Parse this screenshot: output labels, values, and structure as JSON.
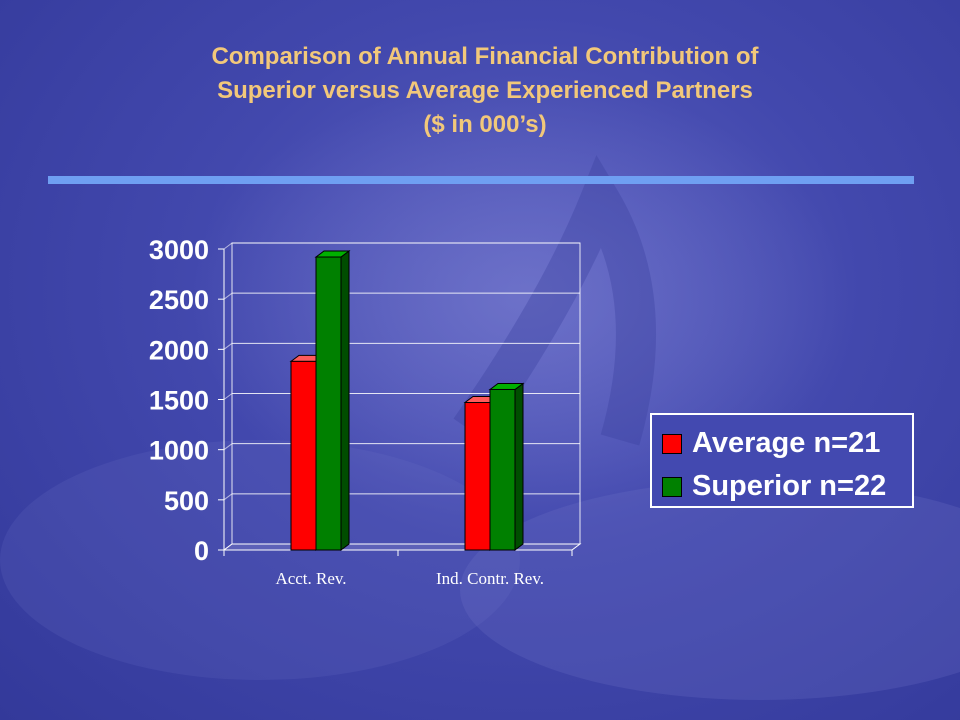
{
  "title_lines": [
    "Comparison of Annual Financial Contribution of",
    "Superior versus Average Experienced Partners",
    "($ in 000’s)"
  ],
  "colors": {
    "average": "#ff0000",
    "superior": "#008000",
    "title": "#f2c87a",
    "rule": "#6f9ff2"
  },
  "chart_data": {
    "type": "bar",
    "title": "Comparison of Annual Financial Contribution of Superior versus Average Experienced Partners ($ in 000’s)",
    "categories": [
      "Acct. Rev.",
      "Ind. Contr. Rev."
    ],
    "series": [
      {
        "name": "Average n=21",
        "values": [
          1880,
          1470
        ]
      },
      {
        "name": "Superior n=22",
        "values": [
          2920,
          1600
        ]
      }
    ],
    "yticks": [
      "0",
      "500",
      "1000",
      "1500",
      "2000",
      "2500",
      "3000"
    ],
    "ylim": [
      0,
      3000
    ],
    "xlabel": "",
    "ylabel": "",
    "grid": true,
    "legend_position": "right",
    "style": "3d"
  },
  "legend": {
    "items": [
      "Average n=21",
      "Superior n=22"
    ]
  }
}
